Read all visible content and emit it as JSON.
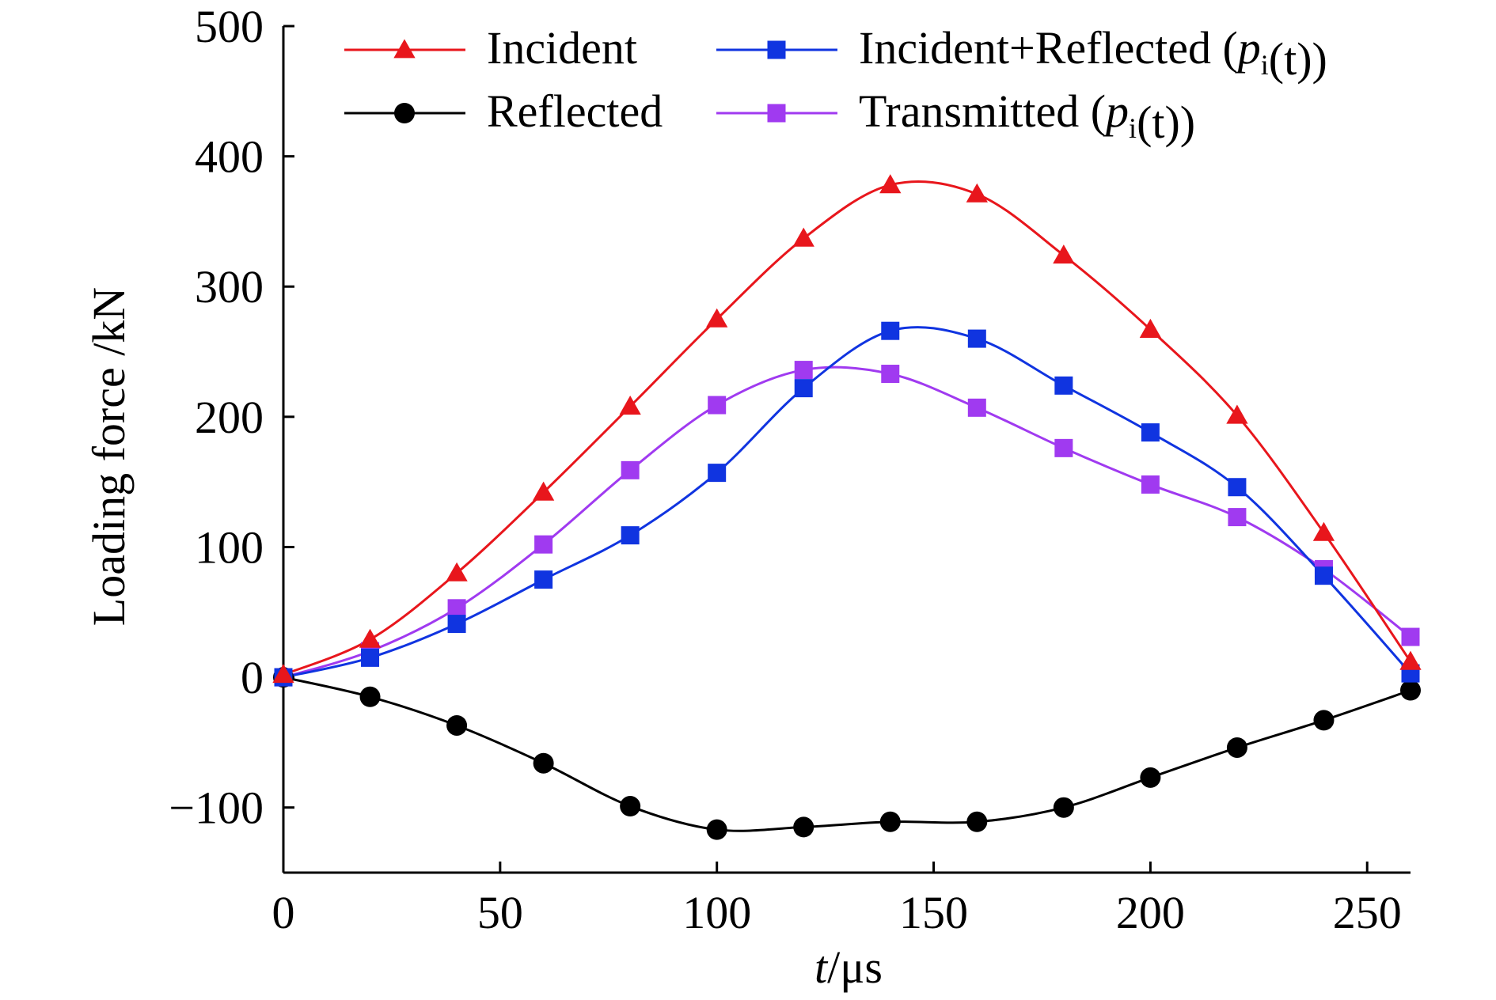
{
  "chart_data": {
    "type": "line",
    "title": "",
    "xlabel_italic": "t",
    "xlabel_unit": "/μs",
    "ylabel": "Loading force /kN",
    "xlim": [
      0,
      260
    ],
    "ylim": [
      -150,
      500
    ],
    "xticks": [
      0,
      50,
      100,
      150,
      200,
      250
    ],
    "yticks": [
      -100,
      0,
      100,
      200,
      300,
      400,
      500
    ],
    "ytick_labels": [
      "−100",
      "0",
      "100",
      "200",
      "300",
      "400",
      "500"
    ],
    "grid": false,
    "legend": "top",
    "x": [
      0,
      20,
      40,
      60,
      80,
      100,
      120,
      140,
      160,
      180,
      200,
      220,
      240,
      260
    ],
    "series": [
      {
        "name": "Incident",
        "name_parts": [
          {
            "t": "Incident"
          }
        ],
        "color": "#e8161c",
        "marker": "triangle",
        "values": [
          2,
          29,
          80,
          142,
          208,
          275,
          337,
          378,
          371,
          324,
          267,
          201,
          111,
          12
        ]
      },
      {
        "name": "Reflected",
        "name_parts": [
          {
            "t": "Reflected"
          }
        ],
        "color": "#000000",
        "marker": "circle",
        "values": [
          0,
          -15,
          -37,
          -66,
          -99,
          -117,
          -115,
          -111,
          -111,
          -100,
          -77,
          -54,
          -33,
          -10
        ]
      },
      {
        "name": "Incident+Reflected (pi(t))",
        "name_parts": [
          {
            "t": "Incident+Reflected ("
          },
          {
            "t": "p",
            "italic": true
          },
          {
            "t": "i",
            "sub": true
          },
          {
            "t": "(t))"
          }
        ],
        "color": "#1034e0",
        "marker": "square",
        "values": [
          0,
          15,
          41,
          75,
          109,
          157,
          222,
          266,
          260,
          224,
          188,
          146,
          78,
          3
        ]
      },
      {
        "name": "Transmitted (pi(t))",
        "name_parts": [
          {
            "t": "Transmitted ("
          },
          {
            "t": "p",
            "italic": true
          },
          {
            "t": "i",
            "sub": true
          },
          {
            "t": "(t))"
          }
        ],
        "color": "#a03af0",
        "marker": "square",
        "values": [
          0,
          20,
          53,
          102,
          159,
          209,
          236,
          233,
          207,
          176,
          148,
          123,
          83,
          31
        ]
      }
    ]
  }
}
